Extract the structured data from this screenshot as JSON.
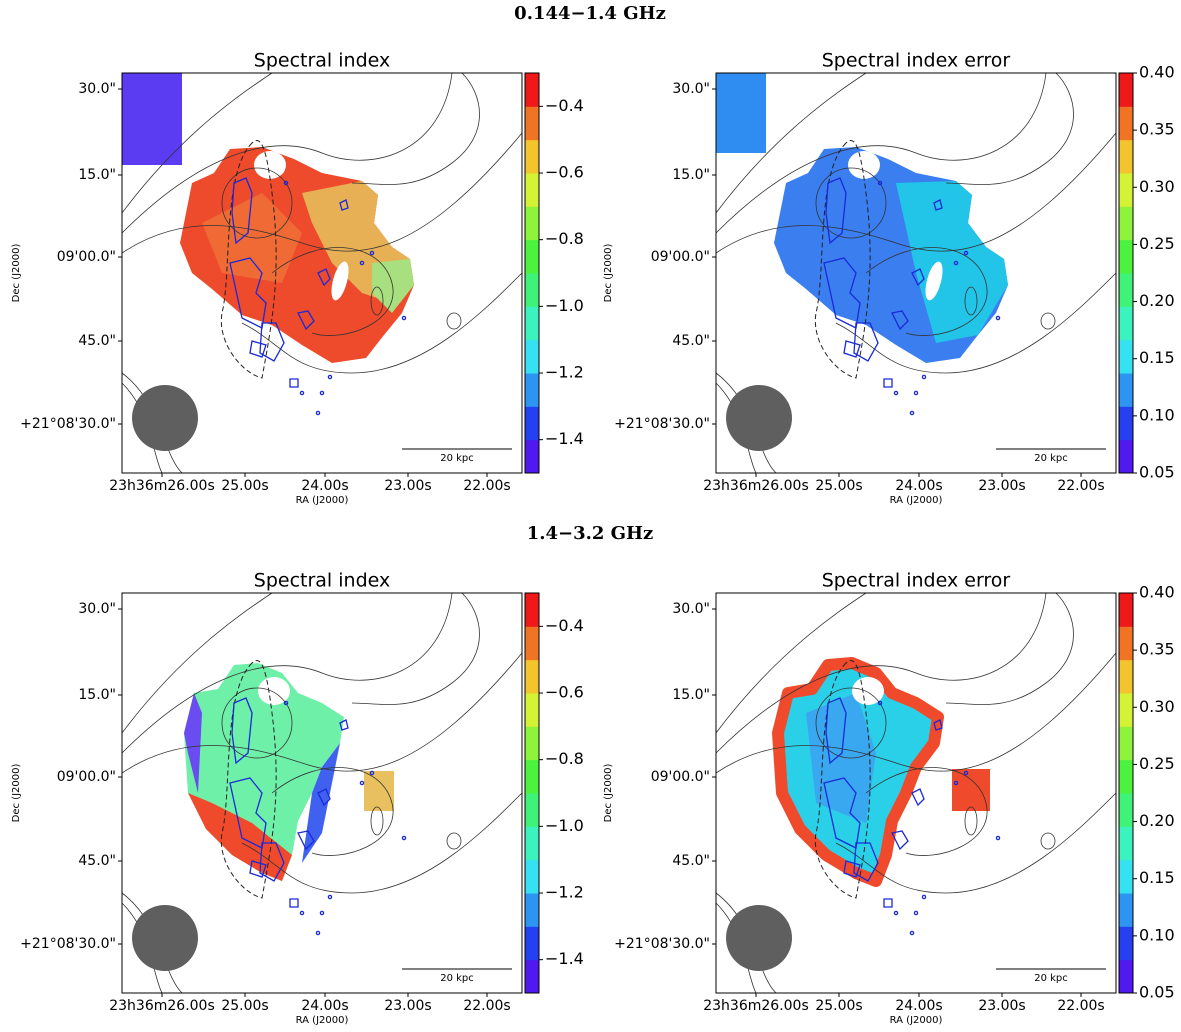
{
  "rows": [
    {
      "title": "0.144−1.4 GHz",
      "panels": [
        {
          "title": "Spectral index",
          "xlabel": "RA (J2000)",
          "ylabel": "Dec (J2000)",
          "xticks": [
            "23h36m26.00s",
            "25.00s",
            "24.00s",
            "23.00s",
            "22.00s"
          ],
          "yticks": [
            "30.0\"",
            "15.0\"",
            "09'00.0\"",
            "45.0\"",
            "+21°08'30.0\""
          ],
          "scalebar": "20 kpc",
          "colorbar": {
            "lim": [
              -1.5,
              -0.3
            ],
            "ticks": [
              {
                "value": -1.4,
                "label": "−1.4"
              },
              {
                "value": -1.2,
                "label": "−1.2"
              },
              {
                "value": -1.0,
                "label": "−1.0"
              },
              {
                "value": -0.8,
                "label": "−0.8"
              },
              {
                "value": -0.6,
                "label": "−0.6"
              },
              {
                "value": -0.4,
                "label": "−0.4"
              }
            ]
          }
        },
        {
          "title": "Spectral index error",
          "xlabel": "RA (J2000)",
          "ylabel": "Dec (J2000)",
          "xticks": [
            "23h36m26.00s",
            "25.00s",
            "24.00s",
            "23.00s",
            "22.00s"
          ],
          "yticks": [
            "30.0\"",
            "15.0\"",
            "09'00.0\"",
            "45.0\"",
            "+21°08'30.0\""
          ],
          "scalebar": "20 kpc",
          "colorbar": {
            "lim": [
              0.05,
              0.4
            ],
            "ticks": [
              0.05,
              {
                "value": 0.1,
                "label": "0.10"
              },
              0.15,
              {
                "value": 0.2,
                "label": "0.20"
              },
              0.25,
              {
                "value": 0.3,
                "label": "0.30"
              },
              0.35,
              {
                "value": 0.4,
                "label": "0.40"
              }
            ]
          }
        }
      ]
    },
    {
      "title": "1.4−3.2 GHz",
      "panels": [
        {
          "title": "Spectral index",
          "xlabel": "RA (J2000)",
          "ylabel": "Dec (J2000)",
          "xticks": [
            "23h36m26.00s",
            "25.00s",
            "24.00s",
            "23.00s",
            "22.00s"
          ],
          "yticks": [
            "30.0\"",
            "15.0\"",
            "09'00.0\"",
            "45.0\"",
            "+21°08'30.0\""
          ],
          "scalebar": "20 kpc",
          "colorbar": {
            "lim": [
              -1.5,
              -0.3
            ],
            "ticks": [
              {
                "value": -1.4,
                "label": "−1.4"
              },
              {
                "value": -1.2,
                "label": "−1.2"
              },
              {
                "value": -1.0,
                "label": "−1.0"
              },
              {
                "value": -0.8,
                "label": "−0.8"
              },
              {
                "value": -0.6,
                "label": "−0.6"
              },
              {
                "value": -0.4,
                "label": "−0.4"
              }
            ]
          }
        },
        {
          "title": "Spectral index error",
          "xlabel": "RA (J2000)",
          "ylabel": "Dec (J2000)",
          "xticks": [
            "23h36m26.00s",
            "25.00s",
            "24.00s",
            "23.00s",
            "22.00s"
          ],
          "yticks": [
            "30.0\"",
            "15.0\"",
            "09'00.0\"",
            "45.0\"",
            "+21°08'30.0\""
          ],
          "scalebar": "20 kpc",
          "colorbar": {
            "lim": [
              0.05,
              0.4
            ],
            "ticks": [
              0.05,
              {
                "value": 0.1,
                "label": "0.10"
              },
              0.15,
              {
                "value": 0.2,
                "label": "0.20"
              },
              0.25,
              {
                "value": 0.3,
                "label": "0.30"
              },
              0.35,
              {
                "value": 0.4,
                "label": "0.40"
              }
            ]
          }
        }
      ]
    }
  ]
}
